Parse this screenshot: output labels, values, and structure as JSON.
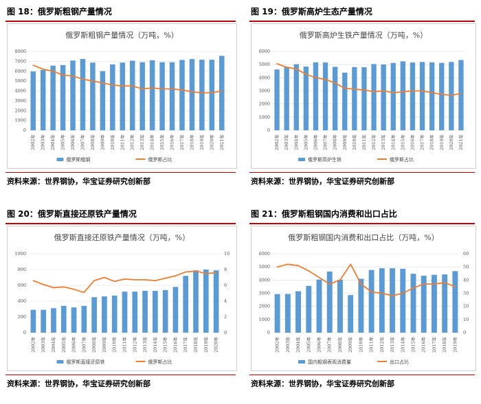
{
  "source_text": "资料来源：世界钢协，华宝证券研究创新部",
  "colors": {
    "bar": "#5b9bd5",
    "line": "#ed7d31",
    "accent_rule": "#c00000",
    "grid": "#d9d9d9"
  },
  "chart_data": [
    {
      "id": "fig18",
      "figure_title": "图 18：俄罗斯粗钢产量情况",
      "type": "bar",
      "title": "俄罗斯粗钢产量情况（万吨，%）",
      "categories": [
        "2002年",
        "2003年",
        "2004年",
        "2005年",
        "2006年",
        "2007年",
        "2008年",
        "2009年",
        "2010年",
        "2011年",
        "2012年",
        "2013年",
        "2014年",
        "2015年",
        "2016年",
        "2017年",
        "2018年",
        "2019年",
        "2020年",
        "2021年"
      ],
      "series": [
        {
          "name": "俄罗斯粗钢",
          "kind": "bar",
          "axis": "left",
          "values": [
            5970,
            6130,
            6560,
            6620,
            7080,
            7240,
            6870,
            6000,
            6690,
            6870,
            7060,
            6910,
            7110,
            6910,
            6910,
            7140,
            7230,
            7160,
            7160,
            7560
          ]
        },
        {
          "name": "俄罗斯占比",
          "kind": "line",
          "axis": "right",
          "values": [
            6.6,
            6.2,
            6.0,
            5.6,
            5.5,
            5.2,
            5.0,
            4.8,
            4.6,
            4.5,
            4.5,
            4.2,
            4.3,
            4.2,
            4.2,
            4.1,
            3.9,
            3.8,
            3.8,
            4.0
          ]
        }
      ],
      "left_axis": {
        "min": 0,
        "max": 8000,
        "step": 1000,
        "ticks": [
          "0",
          "1000",
          "2000",
          "3000",
          "4000",
          "5000",
          "6000",
          "7000",
          "8000"
        ]
      },
      "right_axis": {
        "min": 0,
        "max": 8,
        "ticks": []
      },
      "legend": [
        "俄罗斯粗钢",
        "俄罗斯占比"
      ]
    },
    {
      "id": "fig19",
      "figure_title": "图 19：俄罗斯高炉生态产量情况",
      "type": "bar",
      "title": "俄罗斯高炉生铁产量情况（万吨，%）",
      "categories": [
        "2002年",
        "2003年",
        "2004年",
        "2005年",
        "2006年",
        "2007年",
        "2008年",
        "2009年",
        "2010年",
        "2011年",
        "2012年",
        "2013年",
        "2014年",
        "2015年",
        "2016年",
        "2017年",
        "2018年",
        "2019年",
        "2020年",
        "2021年"
      ],
      "series": [
        {
          "name": "俄罗斯高炉生铁",
          "kind": "bar",
          "axis": "left",
          "values": [
            4630,
            4830,
            5030,
            4850,
            5170,
            5160,
            4830,
            4390,
            4810,
            4800,
            5040,
            5010,
            5130,
            5250,
            5160,
            5200,
            5170,
            5130,
            5200,
            5350
          ]
        },
        {
          "name": "俄罗斯占比",
          "kind": "line",
          "axis": "right",
          "values": [
            7.6,
            7.2,
            7.0,
            6.4,
            6.0,
            5.8,
            5.4,
            4.8,
            4.7,
            4.6,
            4.4,
            4.5,
            4.3,
            4.4,
            4.5,
            4.5,
            4.3,
            4.1,
            4.0,
            4.2
          ]
        }
      ],
      "left_axis": {
        "min": 0,
        "max": 6000,
        "step": 1000,
        "ticks": [
          "0",
          "1000",
          "2000",
          "3000",
          "4000",
          "5000",
          "6000"
        ]
      },
      "right_axis": {
        "min": 0,
        "max": 9,
        "ticks": []
      },
      "legend": [
        "俄罗斯高炉生铁",
        "俄罗斯占比"
      ]
    },
    {
      "id": "fig20",
      "figure_title": "图 20：俄罗斯直接还原铁产量情况",
      "type": "bar",
      "title": "俄罗斯直接还原铁产量情况（万吨，%）",
      "categories": [
        "2002年",
        "2003年",
        "2004年",
        "2005年",
        "2006年",
        "2007年",
        "2008年",
        "2009年",
        "2010年",
        "2011年",
        "2012年",
        "2013年",
        "2014年",
        "2015年",
        "2016年",
        "2017年",
        "2018年",
        "2019年",
        "2020年"
      ],
      "series": [
        {
          "name": "俄罗斯直接还原铁",
          "kind": "bar",
          "axis": "left",
          "values": [
            290,
            290,
            310,
            340,
            320,
            340,
            450,
            460,
            470,
            520,
            520,
            530,
            530,
            540,
            580,
            720,
            790,
            800,
            790
          ]
        },
        {
          "name": "俄罗斯占比",
          "kind": "line",
          "axis": "right",
          "values": [
            6.6,
            6.1,
            5.7,
            5.8,
            5.5,
            5.1,
            6.6,
            7.0,
            6.5,
            6.8,
            6.7,
            6.7,
            6.6,
            6.9,
            7.2,
            7.7,
            7.8,
            7.5,
            7.6
          ]
        }
      ],
      "left_axis": {
        "min": 0,
        "max": 1000,
        "step": 200,
        "ticks": [
          "0",
          "200",
          "400",
          "600",
          "800",
          "1000"
        ]
      },
      "right_axis": {
        "min": 0,
        "max": 10,
        "step": 2,
        "ticks": [
          "0",
          "2",
          "4",
          "6",
          "8",
          "10"
        ]
      },
      "legend": [
        "俄罗斯直接还原铁",
        "俄罗斯占比"
      ]
    },
    {
      "id": "fig21",
      "figure_title": "图 21：俄罗斯粗钢国内消费和出口占比",
      "type": "bar",
      "title": "俄罗斯粗钢国内消费和出口占比（万吨，%）",
      "categories": [
        "2002年",
        "2003年",
        "2004年",
        "2005年",
        "2006年",
        "2007年",
        "2008年",
        "2009年",
        "2010年",
        "2011年",
        "2012年",
        "2013年",
        "2014年",
        "2015年",
        "2016年",
        "2017年",
        "2018年",
        "2019年"
      ],
      "series": [
        {
          "name": "国内粗钢表观消费量",
          "kind": "bar",
          "axis": "left",
          "values": [
            2930,
            2940,
            3150,
            3560,
            4040,
            4650,
            4030,
            2860,
            4100,
            4770,
            4900,
            4900,
            4860,
            4480,
            4330,
            4400,
            4430,
            4680
          ]
        },
        {
          "name": "出口占比",
          "kind": "line",
          "axis": "right",
          "values": [
            50,
            52,
            51,
            47,
            42,
            37,
            40,
            52,
            37,
            31,
            30,
            28,
            30,
            34,
            37,
            37,
            38,
            35
          ]
        }
      ],
      "left_axis": {
        "min": 0,
        "max": 6000,
        "step": 1000,
        "ticks": [
          "0",
          "1000",
          "2000",
          "3000",
          "4000",
          "5000",
          "6000"
        ]
      },
      "right_axis": {
        "min": 0,
        "max": 60,
        "step": 10,
        "ticks": [
          "0",
          "10",
          "20",
          "30",
          "40",
          "50",
          "60"
        ]
      },
      "legend": [
        "国内粗钢表观消费量",
        "出口占比"
      ]
    }
  ]
}
